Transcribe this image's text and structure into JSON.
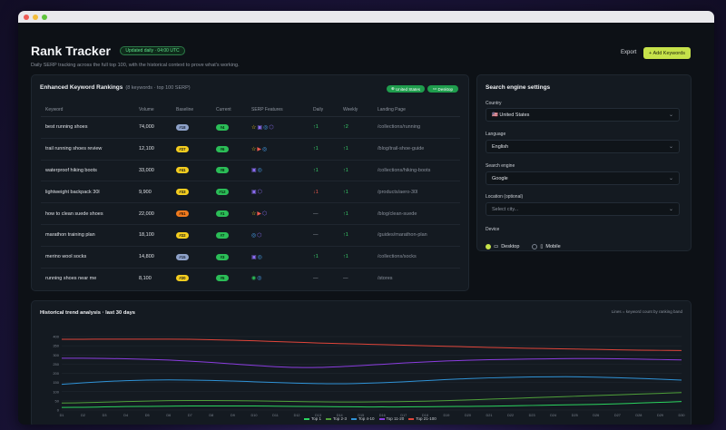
{
  "app": {
    "title": "Rank Tracker",
    "updated_badge": "Updated daily · 04:00 UTC",
    "subtitle": "Daily SERP tracking across the full top 100, with the historical context to prove what's working.",
    "export_label": "Export",
    "add_label": "+ Add Keywords"
  },
  "rankings": {
    "title": "Enhanced Keyword Rankings",
    "subtitle": "(8 keywords · top 100 SERP)",
    "chip_country": "United States",
    "chip_device": "Desktop",
    "columns": [
      "Keyword",
      "Volume",
      "Baseline",
      "Current",
      "SERP Features",
      "Daily",
      "Weekly",
      "Landing Page"
    ],
    "rows": [
      {
        "keyword": "best running shoes",
        "volume": "74,000",
        "baseline": "#18",
        "baseline_color": "blue",
        "current": "#4",
        "features": [
          "star",
          "image",
          "link",
          "shield"
        ],
        "daily": "↑1",
        "daily_dir": "up",
        "weekly": "↑2",
        "weekly_dir": "up",
        "landing": "/collections/running"
      },
      {
        "keyword": "trail running shoes review",
        "volume": "12,100",
        "baseline": "#27",
        "baseline_color": "yellow",
        "current": "#6",
        "features": [
          "star",
          "video",
          "link"
        ],
        "daily": "↑1",
        "daily_dir": "up",
        "weekly": "↑1",
        "weekly_dir": "up",
        "landing": "/blog/trail-shoe-guide"
      },
      {
        "keyword": "waterproof hiking boots",
        "volume": "33,000",
        "baseline": "#41",
        "baseline_color": "yellow",
        "current": "#8",
        "features": [
          "image",
          "link"
        ],
        "daily": "↑1",
        "daily_dir": "up",
        "weekly": "↑1",
        "weekly_dir": "up",
        "landing": "/collections/hiking-boots"
      },
      {
        "keyword": "lightweight backpack 30l",
        "volume": "9,900",
        "baseline": "#33",
        "baseline_color": "yellow",
        "current": "#12",
        "features": [
          "image",
          "shield"
        ],
        "daily": "↓1",
        "daily_dir": "down",
        "weekly": "↑1",
        "weekly_dir": "up",
        "landing": "/products/aero-30l"
      },
      {
        "keyword": "how to clean suede shoes",
        "volume": "22,000",
        "baseline": "#51",
        "baseline_color": "orange",
        "current": "#1",
        "features": [
          "star",
          "video",
          "shield"
        ],
        "daily": "—",
        "daily_dir": "flat",
        "weekly": "↑1",
        "weekly_dir": "up",
        "landing": "/blog/clean-suede"
      },
      {
        "keyword": "marathon training plan",
        "volume": "18,100",
        "baseline": "#22",
        "baseline_color": "yellow",
        "current": "#7",
        "features": [
          "link",
          "shield"
        ],
        "daily": "—",
        "daily_dir": "flat",
        "weekly": "↑1",
        "weekly_dir": "up",
        "landing": "/guides/marathon-plan"
      },
      {
        "keyword": "merino wool socks",
        "volume": "14,800",
        "baseline": "#15",
        "baseline_color": "blue",
        "current": "#3",
        "features": [
          "image",
          "link"
        ],
        "daily": "↑1",
        "daily_dir": "up",
        "weekly": "↑1",
        "weekly_dir": "up",
        "landing": "/collections/socks"
      },
      {
        "keyword": "running shoes near me",
        "volume": "8,100",
        "baseline": "#20",
        "baseline_color": "yellow",
        "current": "#5",
        "features": [
          "pin",
          "link"
        ],
        "daily": "—",
        "daily_dir": "flat",
        "weekly": "—",
        "weekly_dir": "flat",
        "landing": "/stores"
      }
    ]
  },
  "settings": {
    "title": "Search engine settings",
    "country_label": "Country",
    "country_value": "🇺🇸 United States",
    "language_label": "Language",
    "language_value": "English",
    "engine_label": "Search engine",
    "engine_value": "Google",
    "location_label": "Location (optional)",
    "location_value": "Select city...",
    "device_label": "Device",
    "desktop_label": "Desktop",
    "mobile_label": "Mobile"
  },
  "trend": {
    "title": "Historical trend analysis · last 30 days",
    "note": "Lines = keyword count by ranking band"
  },
  "chart_data": {
    "type": "line",
    "y_ticks": [
      "400",
      "350",
      "300",
      "250",
      "200",
      "150",
      "100",
      "50",
      "0"
    ],
    "ylim": [
      0,
      400
    ],
    "x": [
      "D1",
      "D2",
      "D3",
      "D4",
      "D5",
      "D6",
      "D7",
      "D8",
      "D9",
      "D10",
      "D11",
      "D12",
      "D13",
      "D14",
      "D15",
      "D16",
      "D17",
      "D18",
      "D19",
      "D20",
      "D21",
      "D22",
      "D23",
      "D24",
      "D25",
      "D26",
      "D27",
      "D28",
      "D29",
      "D30"
    ],
    "series": [
      {
        "name": "Top 1",
        "color": "#2bd45f",
        "values": [
          14,
          15,
          17,
          19,
          20,
          21,
          22,
          22,
          22,
          22,
          21,
          20,
          19,
          18,
          17,
          17,
          17,
          18,
          19,
          20,
          21,
          23,
          25,
          27,
          29,
          31,
          34,
          38,
          42,
          46
        ]
      },
      {
        "name": "Top 2-3",
        "color": "#4fa03a",
        "values": [
          38,
          40,
          43,
          46,
          49,
          51,
          52,
          52,
          51,
          50,
          48,
          46,
          45,
          44,
          44,
          45,
          46,
          48,
          51,
          55,
          59,
          63,
          67,
          71,
          75,
          79,
          83,
          87,
          91,
          95
        ]
      },
      {
        "name": "Top 4-10",
        "color": "#2f92d6",
        "values": [
          140,
          148,
          155,
          160,
          163,
          164,
          163,
          161,
          158,
          154,
          150,
          146,
          144,
          143,
          145,
          149,
          154,
          160,
          166,
          171,
          175,
          178,
          180,
          181,
          181,
          179,
          176,
          172,
          168,
          163
        ]
      },
      {
        "name": "Top 11-20",
        "color": "#8b3ddf",
        "values": [
          282,
          282,
          281,
          279,
          276,
          272,
          266,
          259,
          251,
          243,
          236,
          232,
          232,
          236,
          242,
          249,
          256,
          262,
          267,
          271,
          274,
          276,
          278,
          279,
          280,
          280,
          279,
          277,
          275,
          273
        ]
      },
      {
        "name": "Top 21-100",
        "color": "#e0453a",
        "values": [
          385,
          385,
          386,
          386,
          386,
          386,
          385,
          383,
          380,
          377,
          373,
          369,
          365,
          362,
          359,
          356,
          353,
          350,
          347,
          344,
          341,
          338,
          336,
          334,
          332,
          330,
          328,
          326,
          325,
          324
        ]
      }
    ]
  }
}
